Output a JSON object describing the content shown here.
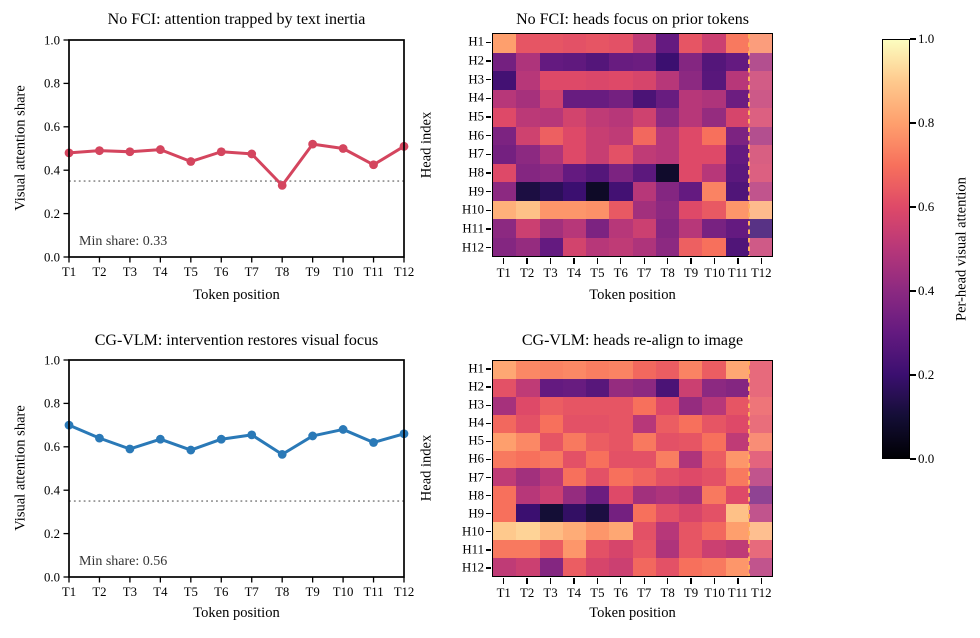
{
  "figure": {
    "background": "#ffffff",
    "text_color": "#000000"
  },
  "colorbar": {
    "label": "Per-head visual attention",
    "tick_labels": [
      "1.0",
      "0.8",
      "0.6",
      "0.4",
      "0.2",
      "0.0"
    ],
    "colormap": "magma",
    "range": [
      0,
      1
    ]
  },
  "chart_data": [
    {
      "id": "no-fci-line",
      "type": "line",
      "title": "No FCI: attention trapped by text inertia",
      "xlabel": "Token position",
      "ylabel": "Visual attention share",
      "categories": [
        "T1",
        "T2",
        "T3",
        "T4",
        "T5",
        "T6",
        "T7",
        "T8",
        "T9",
        "T10",
        "T11",
        "T12"
      ],
      "values": [
        0.48,
        0.49,
        0.485,
        0.495,
        0.44,
        0.485,
        0.475,
        0.33,
        0.52,
        0.5,
        0.425,
        0.51
      ],
      "ylim": [
        0,
        1
      ],
      "ytick_labels": [
        "0.0",
        "0.2",
        "0.4",
        "0.6",
        "0.8",
        "1.0"
      ],
      "threshold": 0.35,
      "threshold_color": "#8c8c8c",
      "line_color": "#d4455e",
      "annotation": "Min share: 0.33",
      "annotation_color": "#333333",
      "grid": false,
      "legend": "none"
    },
    {
      "id": "no-fci-heatmap",
      "type": "heatmap",
      "title": "No FCI: heads focus on prior tokens",
      "xlabel": "Token position",
      "ylabel": "Head index",
      "x_categories": [
        "T1",
        "T2",
        "T3",
        "T4",
        "T5",
        "T6",
        "T7",
        "T8",
        "T9",
        "T10",
        "T11",
        "T12"
      ],
      "y_categories": [
        "H1",
        "H2",
        "H3",
        "H4",
        "H5",
        "H6",
        "H7",
        "H8",
        "H9",
        "H10",
        "H11",
        "H12"
      ],
      "values": [
        [
          0.8,
          0.63,
          0.63,
          0.62,
          0.63,
          0.62,
          0.52,
          0.3,
          0.63,
          0.55,
          0.72,
          0.76
        ],
        [
          0.34,
          0.48,
          0.3,
          0.29,
          0.26,
          0.31,
          0.32,
          0.2,
          0.38,
          0.26,
          0.3,
          0.46
        ],
        [
          0.22,
          0.5,
          0.6,
          0.6,
          0.59,
          0.6,
          0.58,
          0.5,
          0.4,
          0.27,
          0.5,
          0.55
        ],
        [
          0.5,
          0.46,
          0.56,
          0.31,
          0.31,
          0.34,
          0.24,
          0.31,
          0.5,
          0.48,
          0.32,
          0.53
        ],
        [
          0.6,
          0.51,
          0.5,
          0.57,
          0.52,
          0.5,
          0.56,
          0.4,
          0.5,
          0.42,
          0.58,
          0.58
        ],
        [
          0.36,
          0.56,
          0.66,
          0.6,
          0.54,
          0.52,
          0.68,
          0.5,
          0.6,
          0.7,
          0.36,
          0.46
        ],
        [
          0.34,
          0.4,
          0.48,
          0.6,
          0.54,
          0.62,
          0.52,
          0.5,
          0.6,
          0.6,
          0.3,
          0.57
        ],
        [
          0.6,
          0.38,
          0.4,
          0.3,
          0.26,
          0.36,
          0.28,
          0.08,
          0.6,
          0.5,
          0.28,
          0.58
        ],
        [
          0.4,
          0.12,
          0.16,
          0.2,
          0.07,
          0.22,
          0.5,
          0.38,
          0.3,
          0.74,
          0.25,
          0.5
        ],
        [
          0.84,
          0.88,
          0.78,
          0.78,
          0.77,
          0.64,
          0.45,
          0.4,
          0.6,
          0.64,
          0.78,
          0.84
        ],
        [
          0.4,
          0.55,
          0.45,
          0.5,
          0.36,
          0.5,
          0.55,
          0.38,
          0.5,
          0.35,
          0.3,
          0.2
        ],
        [
          0.38,
          0.42,
          0.3,
          0.57,
          0.5,
          0.52,
          0.48,
          0.4,
          0.66,
          0.7,
          0.25,
          0.54
        ]
      ],
      "vmin": 0,
      "vmax": 1,
      "colormap": "magma",
      "boundary_after_index": 11,
      "boundary_color": "#ffad5c"
    },
    {
      "id": "cg-vlm-line",
      "type": "line",
      "title": "CG-VLM: intervention restores visual focus",
      "xlabel": "Token position",
      "ylabel": "Visual attention share",
      "categories": [
        "T1",
        "T2",
        "T3",
        "T4",
        "T5",
        "T6",
        "T7",
        "T8",
        "T9",
        "T10",
        "T11",
        "T12"
      ],
      "values": [
        0.7,
        0.64,
        0.59,
        0.635,
        0.585,
        0.635,
        0.655,
        0.565,
        0.65,
        0.68,
        0.62,
        0.66
      ],
      "ylim": [
        0,
        1
      ],
      "ytick_labels": [
        "0.0",
        "0.2",
        "0.4",
        "0.6",
        "0.8",
        "1.0"
      ],
      "threshold": 0.35,
      "threshold_color": "#8c8c8c",
      "line_color": "#2a79b7",
      "annotation": "Min share: 0.56",
      "annotation_color": "#333333",
      "grid": false,
      "legend": "none"
    },
    {
      "id": "cg-vlm-heatmap",
      "type": "heatmap",
      "title": "CG-VLM: heads re-align to image",
      "xlabel": "Token position",
      "ylabel": "Head index",
      "x_categories": [
        "T1",
        "T2",
        "T3",
        "T4",
        "T5",
        "T6",
        "T7",
        "T8",
        "T9",
        "T10",
        "T11",
        "T12"
      ],
      "y_categories": [
        "H1",
        "H2",
        "H3",
        "H4",
        "H5",
        "H6",
        "H7",
        "H8",
        "H9",
        "H10",
        "H11",
        "H12"
      ],
      "values": [
        [
          0.82,
          0.75,
          0.74,
          0.75,
          0.73,
          0.74,
          0.68,
          0.65,
          0.74,
          0.65,
          0.82,
          0.62
        ],
        [
          0.62,
          0.52,
          0.3,
          0.31,
          0.27,
          0.42,
          0.4,
          0.24,
          0.55,
          0.4,
          0.38,
          0.62
        ],
        [
          0.46,
          0.6,
          0.65,
          0.63,
          0.63,
          0.63,
          0.7,
          0.6,
          0.42,
          0.5,
          0.63,
          0.65
        ],
        [
          0.68,
          0.62,
          0.7,
          0.62,
          0.62,
          0.63,
          0.5,
          0.65,
          0.7,
          0.63,
          0.6,
          0.63
        ],
        [
          0.8,
          0.75,
          0.63,
          0.72,
          0.65,
          0.63,
          0.72,
          0.62,
          0.63,
          0.7,
          0.52,
          0.72
        ],
        [
          0.72,
          0.7,
          0.72,
          0.62,
          0.7,
          0.62,
          0.62,
          0.73,
          0.48,
          0.65,
          0.78,
          0.6
        ],
        [
          0.52,
          0.45,
          0.51,
          0.7,
          0.62,
          0.7,
          0.67,
          0.62,
          0.6,
          0.62,
          0.72,
          0.5
        ],
        [
          0.7,
          0.5,
          0.55,
          0.42,
          0.32,
          0.6,
          0.45,
          0.48,
          0.45,
          0.72,
          0.6,
          0.36
        ],
        [
          0.7,
          0.2,
          0.1,
          0.18,
          0.12,
          0.34,
          0.7,
          0.62,
          0.58,
          0.62,
          0.88,
          0.5
        ],
        [
          0.9,
          0.92,
          0.87,
          0.83,
          0.78,
          0.82,
          0.62,
          0.5,
          0.63,
          0.68,
          0.8,
          0.85
        ],
        [
          0.72,
          0.72,
          0.65,
          0.78,
          0.62,
          0.58,
          0.63,
          0.48,
          0.63,
          0.55,
          0.52,
          0.62
        ],
        [
          0.52,
          0.55,
          0.38,
          0.65,
          0.58,
          0.55,
          0.68,
          0.62,
          0.7,
          0.72,
          0.78,
          0.5
        ]
      ],
      "vmin": 0,
      "vmax": 1,
      "colormap": "magma",
      "boundary_after_index": 11,
      "boundary_color": "#ffad5c"
    }
  ]
}
